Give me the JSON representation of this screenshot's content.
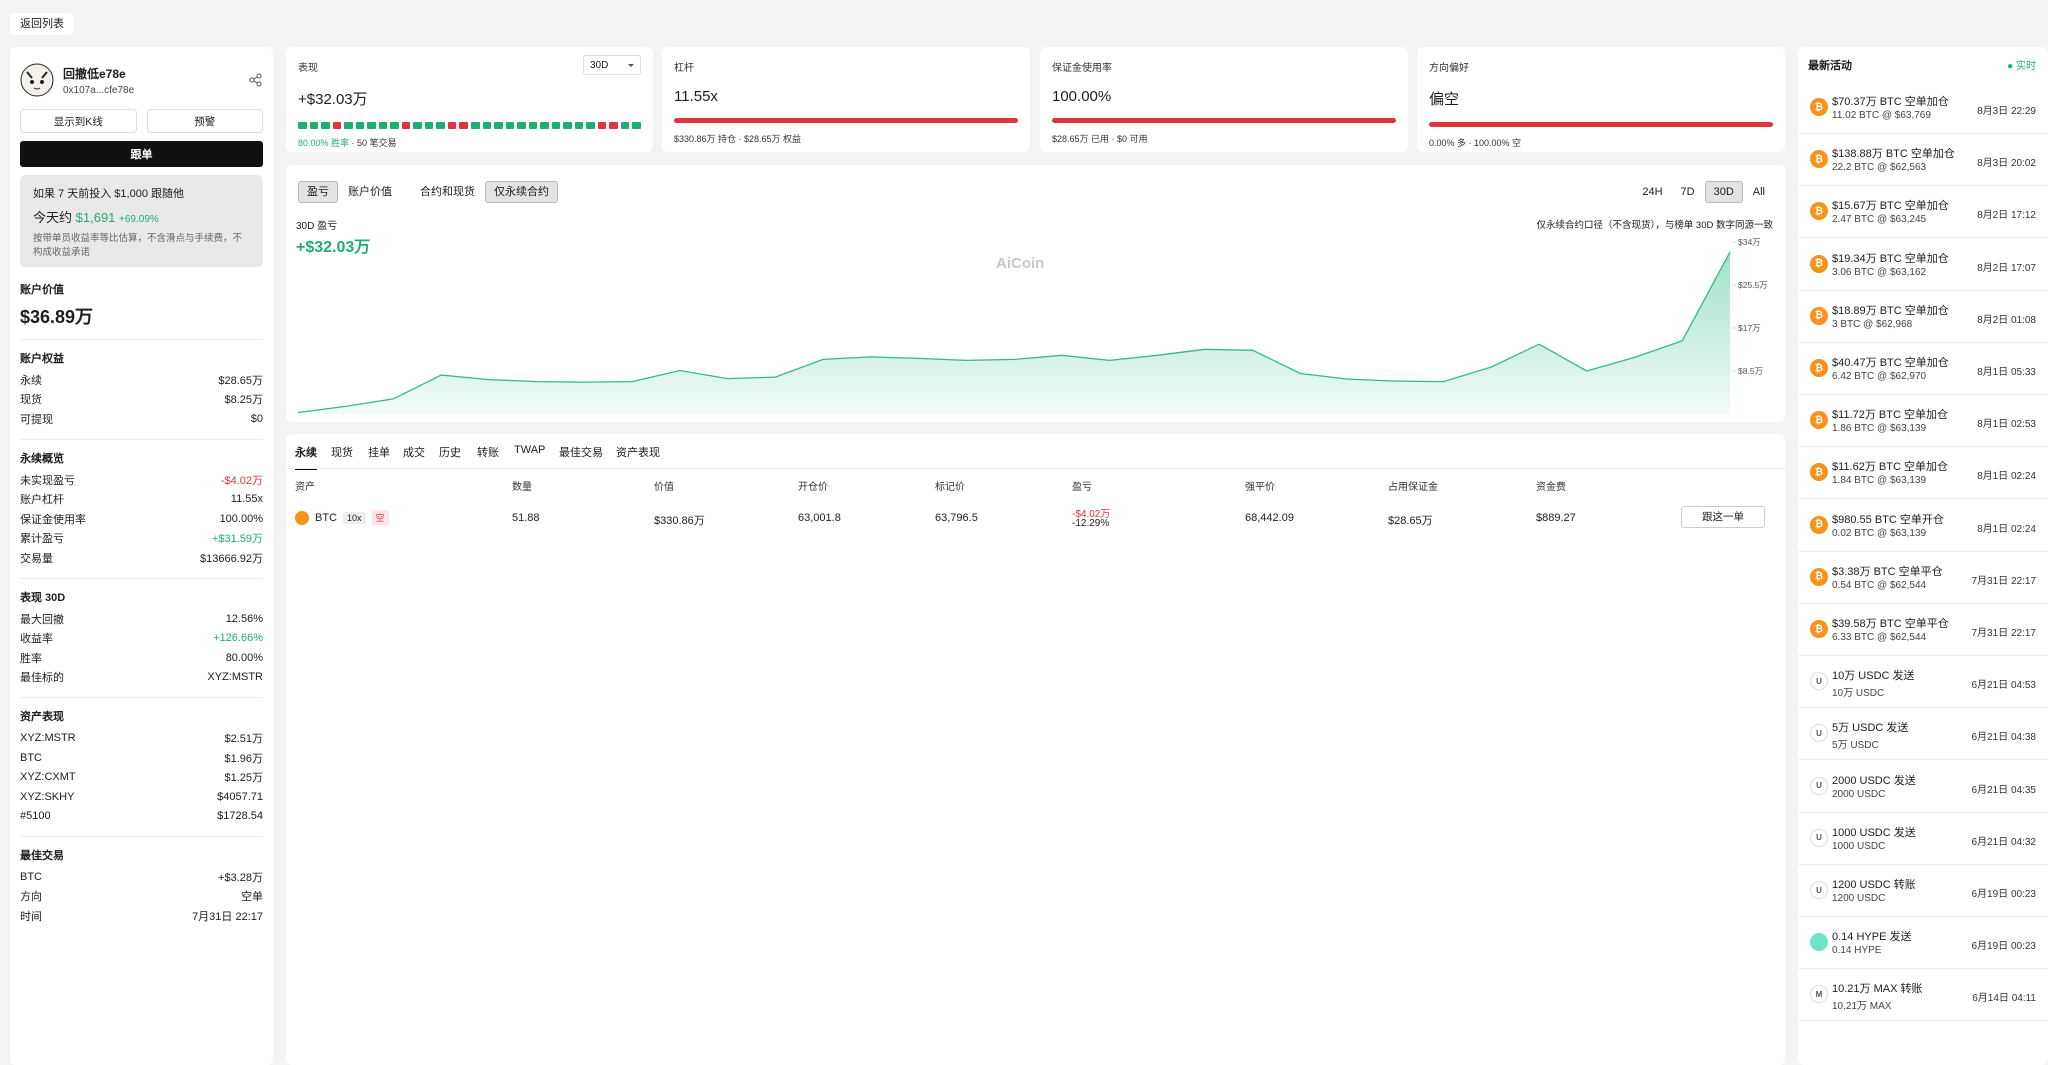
{
  "back": "返回列表",
  "profile": {
    "name": "回撤低e78e",
    "address": "0x107a...cfe78e",
    "kline_button": "显示到K线",
    "alert_button": "预警",
    "follow_button": "跟单"
  },
  "promo": {
    "line1": "如果 7 天前投入 $1,000 跟随他",
    "today_label": "今天约",
    "today_value": "$1,691",
    "change": "+69.09%",
    "note": "按带单员收益率等比估算，不含滑点与手续费，不构成收益承诺"
  },
  "account_value": {
    "label": "账户价值",
    "value": "$36.89万"
  },
  "sections": [
    {
      "title": "账户权益",
      "rows": [
        {
          "label": "永续",
          "value": "$28.65万"
        },
        {
          "label": "现货",
          "value": "$8.25万"
        },
        {
          "label": "可提现",
          "value": "$0"
        }
      ]
    },
    {
      "title": "永续概览",
      "rows": [
        {
          "label": "未实现盈亏",
          "value": "-$4.02万",
          "color": "#e0343f"
        },
        {
          "label": "账户杠杆",
          "value": "11.55x"
        },
        {
          "label": "保证金使用率",
          "value": "100.00%"
        },
        {
          "label": "累计盈亏",
          "value": "+$31.59万",
          "color": "#1fae72"
        },
        {
          "label": "交易量",
          "value": "$13666.92万"
        }
      ]
    },
    {
      "title": "表现 30D",
      "rows": [
        {
          "label": "最大回撤",
          "value": "12.56%"
        },
        {
          "label": "收益率",
          "value": "+126.66%",
          "color": "#1fae72"
        },
        {
          "label": "胜率",
          "value": "80.00%"
        },
        {
          "label": "最佳标的",
          "value": "XYZ:MSTR"
        }
      ]
    },
    {
      "title": "资产表现",
      "rows": [
        {
          "label": "XYZ:MSTR",
          "value": "$2.51万"
        },
        {
          "label": "BTC",
          "value": "$1.96万"
        },
        {
          "label": "XYZ:CXMT",
          "value": "$1.25万"
        },
        {
          "label": "XYZ:SKHY",
          "value": "$4057.71"
        },
        {
          "label": "#5100",
          "value": "$1728.54"
        }
      ]
    },
    {
      "title": "最佳交易",
      "rows": [
        {
          "label": "BTC",
          "value": "+$3.28万"
        },
        {
          "label": "方向",
          "value": "空单"
        },
        {
          "label": "时间",
          "value": "7月31日 22:17"
        }
      ]
    }
  ],
  "cards": {
    "performance": {
      "label": "表现",
      "period": "30D",
      "value": "+$32.03万",
      "win_rate": "80.00% 胜率",
      "trades": "· 50 笔交易"
    },
    "leverage": {
      "label": "杠杆",
      "value": "11.55x",
      "footer": "$330.86万 持仓 · $28.65万 权益"
    },
    "margin": {
      "label": "保证金使用率",
      "value": "100.00%",
      "footer": "$28.65万 已用 · $0 可用"
    },
    "direction": {
      "label": "方向偏好",
      "value": "偏空",
      "footer": "0.00% 多 · 100.00% 空"
    }
  },
  "chart_panel": {
    "tabs": [
      "盈亏",
      "账户价值"
    ],
    "scope_tabs": [
      "合约和现货",
      "仅永续合约"
    ],
    "ranges": [
      "24H",
      "7D",
      "30D",
      "All"
    ],
    "watermark": "AiCoin",
    "chart_data": {
      "type": "area",
      "title": "30D 盈亏",
      "subtitle": "+$32.03万",
      "note": "仅永续合约口径（不含现货），与榜单 30D 数字同源一致",
      "color": "#2dbd85",
      "values": [
        0.3,
        1.5,
        3,
        7.7,
        6.8,
        6.4,
        6.3,
        6.4,
        8.6,
        7,
        7.3,
        10.8,
        11.3,
        11,
        10.6,
        10.8,
        11.6,
        10.6,
        11.6,
        12.8,
        12.6,
        8,
        6.9,
        6.5,
        6.4,
        9.3,
        13.8,
        8.5,
        11.2,
        14.5,
        32.03
      ],
      "ylim": [
        0,
        35
      ],
      "yticks": [
        {
          "value": 34,
          "label": "$34万"
        },
        {
          "value": 25.5,
          "label": "$25.5万"
        },
        {
          "value": 17,
          "label": "$17万"
        },
        {
          "value": 8.5,
          "label": "$8.5万"
        }
      ]
    }
  },
  "positions": {
    "tabs": [
      "永续",
      "现货",
      "挂单",
      "成交",
      "历史",
      "转账",
      "TWAP",
      "最佳交易",
      "资产表现"
    ],
    "headers": [
      "资产",
      "数量",
      "价值",
      "开仓价",
      "标记价",
      "盈亏",
      "强平价",
      "占用保证金",
      "资金费"
    ],
    "rows": [
      {
        "asset": "BTC",
        "leverage": "10x",
        "side": "空",
        "size": "51.88",
        "value": "$330.86万",
        "entry": "63,001.8",
        "mark": "63,796.5",
        "pnl": "-$4.02万",
        "pnl_pct": "-12.29%",
        "liq": "68,442.09",
        "margin": "$28.65万",
        "funding": "$889.27",
        "action": "跟这一单"
      }
    ]
  },
  "activity": {
    "title": "最新活动",
    "live": "实时",
    "items": [
      {
        "icon": "₿",
        "icon_color": "#f7931a",
        "title": "$70.37万 BTC 空单加仓",
        "sub": "11.02 BTC @ $63,769",
        "time": "8月3日 22:29"
      },
      {
        "icon": "₿",
        "icon_color": "#f7931a",
        "title": "$138.88万 BTC 空单加仓",
        "sub": "22.2 BTC @ $62,563",
        "time": "8月3日 20:02"
      },
      {
        "icon": "₿",
        "icon_color": "#f7931a",
        "title": "$15.67万 BTC 空单加仓",
        "sub": "2.47 BTC @ $63,245",
        "time": "8月2日 17:12"
      },
      {
        "icon": "₿",
        "icon_color": "#f7931a",
        "title": "$19.34万 BTC 空单加仓",
        "sub": "3.06 BTC @ $63,162",
        "time": "8月2日 17:07"
      },
      {
        "icon": "₿",
        "icon_color": "#f7931a",
        "title": "$18.89万 BTC 空单加仓",
        "sub": "3 BTC @ $62,968",
        "time": "8月2日 01:08"
      },
      {
        "icon": "₿",
        "icon_color": "#f7931a",
        "title": "$40.47万 BTC 空单加仓",
        "sub": "6.42 BTC @ $62,970",
        "time": "8月1日 05:33"
      },
      {
        "icon": "₿",
        "icon_color": "#f7931a",
        "title": "$11.72万 BTC 空单加仓",
        "sub": "1.86 BTC @ $63,139",
        "time": "8月1日 02:53"
      },
      {
        "icon": "₿",
        "icon_color": "#f7931a",
        "title": "$11.62万 BTC 空单加仓",
        "sub": "1.84 BTC @ $63,139",
        "time": "8月1日 02:24"
      },
      {
        "icon": "₿",
        "icon_color": "#f7931a",
        "title": "$980.55 BTC 空单开仓",
        "sub": "0.02 BTC @ $63,139",
        "time": "8月1日 02:24"
      },
      {
        "icon": "₿",
        "icon_color": "#f7931a",
        "title": "$3.38万 BTC 空单平仓",
        "sub": "0.54 BTC @ $62,544",
        "time": "7月31日 22:17"
      },
      {
        "icon": "₿",
        "icon_color": "#f7931a",
        "title": "$39.58万 BTC 空单平仓",
        "sub": "6.33 BTC @ $62,544",
        "time": "7月31日 22:17"
      },
      {
        "icon": "U",
        "icon_color": "#ffffff",
        "title": "10万 USDC 发送",
        "sub": "10万 USDC",
        "time": "6月21日 04:53"
      },
      {
        "icon": "U",
        "icon_color": "#ffffff",
        "title": "5万 USDC 发送",
        "sub": "5万 USDC",
        "time": "6月21日 04:38"
      },
      {
        "icon": "U",
        "icon_color": "#ffffff",
        "title": "2000 USDC 发送",
        "sub": "2000 USDC",
        "time": "6月21日 04:35"
      },
      {
        "icon": "U",
        "icon_color": "#ffffff",
        "title": "1000 USDC 发送",
        "sub": "1000 USDC",
        "time": "6月21日 04:32"
      },
      {
        "icon": "U",
        "icon_color": "#ffffff",
        "title": "1200 USDC 转账",
        "sub": "1200 USDC",
        "time": "6月19日 00:23"
      },
      {
        "icon_color": "#6fe3c8",
        "title": "0.14 HYPE 发送",
        "sub": "0.14 HYPE",
        "time": "6月19日 00:23"
      },
      {
        "icon": "M",
        "icon_color": "#ffffff",
        "title": "10.21万 MAX 转账",
        "sub": "10.21万 MAX",
        "time": "6月14日 04:11"
      }
    ]
  }
}
